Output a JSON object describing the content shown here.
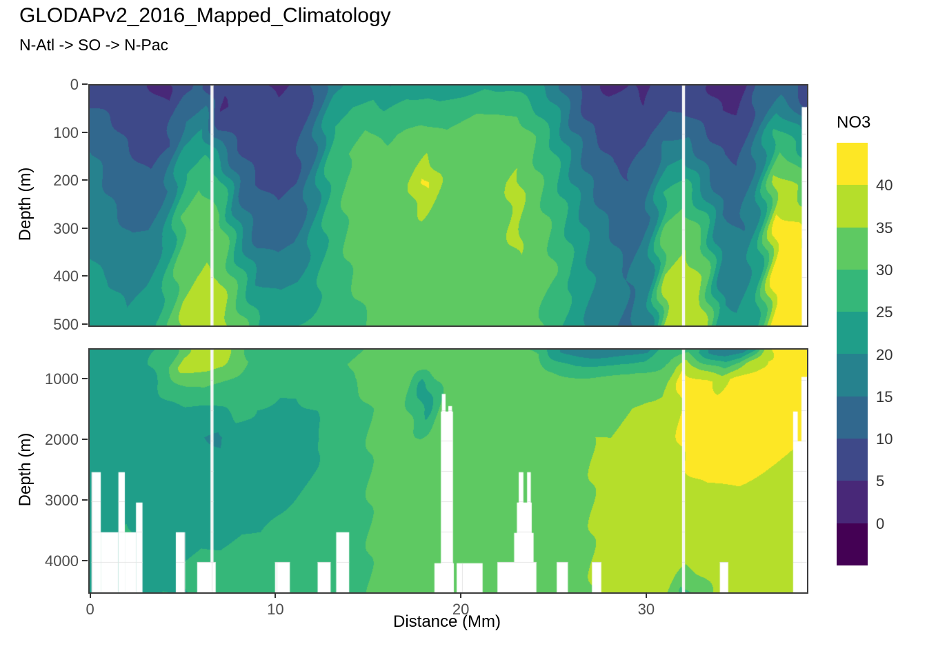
{
  "header": {
    "title": "GLODAPv2_2016_Mapped_Climatology",
    "subtitle": "N-Atl -> SO -> N-Pac"
  },
  "axes": {
    "x": {
      "label": "Distance (Mm)",
      "ticks": [
        0,
        10,
        20,
        30
      ],
      "range": [
        0,
        38.6
      ]
    },
    "y": {
      "label": "Depth (m)"
    },
    "y_top": {
      "ticks": [
        0,
        100,
        200,
        300,
        400,
        500
      ],
      "range": [
        0,
        500
      ]
    },
    "y_bottom": {
      "ticks": [
        1000,
        2000,
        3000,
        4000
      ],
      "range": [
        500,
        4500
      ]
    }
  },
  "legend": {
    "title": "NO3",
    "tick_labels": [
      "40",
      "35",
      "30",
      "25",
      "20",
      "15",
      "10",
      "5",
      "0"
    ],
    "band_colors_top_to_bottom": [
      "#fde725",
      "#b5de2b",
      "#5ec962",
      "#35b779",
      "#1f9e89",
      "#26828e",
      "#31688e",
      "#3e4989",
      "#482878",
      "#440154"
    ]
  },
  "chart_data": {
    "type": "heatmap",
    "variable": "NO3",
    "title": "GLODAPv2_2016_Mapped_Climatology",
    "subtitle": "N-Atl -> SO -> N-Pac",
    "xlabel": "Distance (Mm)",
    "ylabel": "Depth (m)",
    "x_range": [
      0,
      38.6
    ],
    "color_scale": {
      "breaks": [
        0,
        5,
        10,
        15,
        20,
        25,
        30,
        35,
        40
      ],
      "colors_low_to_high": [
        "#440154",
        "#482878",
        "#3e4989",
        "#31688e",
        "#26828e",
        "#1f9e89",
        "#35b779",
        "#5ec962",
        "#b5de2b",
        "#fde725"
      ]
    },
    "x": [
      0,
      1,
      2,
      3,
      4,
      5,
      6,
      7,
      8,
      9,
      10,
      11,
      12,
      13,
      14,
      15,
      16,
      17,
      18,
      19,
      20,
      21,
      22,
      23,
      24,
      25,
      26,
      27,
      28,
      29,
      30,
      31,
      32,
      33,
      34,
      35,
      36,
      37,
      38,
      38.6
    ],
    "upper_panel": {
      "depth_range": [
        0,
        500
      ],
      "depths": [
        0,
        50,
        100,
        200,
        300,
        400,
        500
      ],
      "values_by_column": [
        [
          8,
          10,
          14,
          17,
          19,
          21,
          22
        ],
        [
          7,
          9,
          11,
          14,
          17,
          20,
          22
        ],
        [
          6,
          7,
          9,
          12,
          15,
          18,
          21
        ],
        [
          5,
          6,
          8,
          11,
          15,
          19,
          23
        ],
        [
          4,
          6,
          9,
          14,
          19,
          24,
          28
        ],
        [
          9,
          13,
          18,
          26,
          31,
          34,
          36
        ],
        [
          11,
          16,
          21,
          29,
          33,
          36,
          38
        ],
        [
          6,
          4,
          10,
          25,
          32,
          35,
          38
        ],
        [
          6,
          6,
          8,
          13,
          20,
          27,
          32
        ],
        [
          6,
          6,
          7,
          10,
          13,
          19,
          25
        ],
        [
          4,
          6,
          7,
          9,
          12,
          18,
          24
        ],
        [
          6,
          7,
          8,
          10,
          13,
          19,
          25
        ],
        [
          10,
          12,
          14,
          17,
          20,
          23,
          26
        ],
        [
          19,
          22,
          26,
          28,
          28,
          28,
          28
        ],
        [
          21,
          25,
          29,
          31,
          31,
          30,
          29
        ],
        [
          22,
          26,
          30,
          32,
          32,
          31,
          30
        ],
        [
          19,
          24,
          29,
          33,
          33,
          32,
          31
        ],
        [
          22,
          27,
          31,
          33,
          34,
          32,
          31
        ],
        [
          23,
          28,
          32,
          41,
          34,
          33,
          31
        ],
        [
          23,
          27,
          31,
          33,
          33,
          32,
          31
        ],
        [
          23,
          28,
          32,
          34,
          34,
          33,
          32
        ],
        [
          24,
          29,
          33,
          34,
          34,
          33,
          32
        ],
        [
          23,
          28,
          33,
          34,
          34,
          33,
          32
        ],
        [
          23,
          28,
          33,
          36,
          36,
          34,
          32
        ],
        [
          21,
          25,
          29,
          31,
          32,
          32,
          31
        ],
        [
          18,
          21,
          24,
          27,
          29,
          30,
          27
        ],
        [
          11,
          13,
          16,
          20,
          23,
          25,
          22
        ],
        [
          6,
          8,
          10,
          14,
          18,
          20,
          19
        ],
        [
          4,
          6,
          8,
          11,
          15,
          17,
          16
        ],
        [
          5,
          6,
          8,
          10,
          13,
          15,
          14
        ],
        [
          4,
          5,
          9,
          13,
          16,
          17,
          17
        ],
        [
          8,
          10,
          14,
          24,
          31,
          35,
          37
        ],
        [
          7,
          10,
          15,
          26,
          33,
          37,
          38
        ],
        [
          6,
          8,
          11,
          17,
          28,
          34,
          36
        ],
        [
          3,
          5,
          8,
          12,
          16,
          19,
          21
        ],
        [
          3,
          4,
          7,
          11,
          15,
          18,
          21
        ],
        [
          10,
          12,
          15,
          19,
          22,
          24,
          26
        ],
        [
          12,
          18,
          26,
          37,
          42,
          44,
          44
        ],
        [
          10,
          15,
          24,
          35,
          41,
          44,
          44
        ],
        [
          7,
          9,
          18,
          30,
          38,
          42,
          43
        ]
      ],
      "no_data_rects": [
        [
          6.42,
          6.58,
          0,
          500
        ],
        [
          31.86,
          32.02,
          0,
          500
        ],
        [
          38.32,
          38.6,
          45,
          500
        ]
      ]
    },
    "lower_panel": {
      "depth_range": [
        500,
        4500
      ],
      "depths": [
        500,
        750,
        1000,
        1500,
        2000,
        2500,
        3000,
        3500,
        4000,
        4500
      ],
      "values_by_column": [
        [
          21,
          22,
          22,
          22,
          22,
          22,
          22,
          22,
          22,
          22
        ],
        [
          22,
          22,
          22,
          22,
          22,
          22,
          22,
          22,
          22,
          22
        ],
        [
          22,
          22,
          22,
          22,
          22,
          22,
          23,
          26,
          24,
          24
        ],
        [
          23,
          24,
          23,
          22,
          22,
          22,
          22,
          23,
          24,
          24
        ],
        [
          26,
          30,
          27,
          23,
          22,
          22,
          22,
          23,
          24,
          25
        ],
        [
          34,
          37,
          31,
          24,
          22,
          22,
          22,
          23,
          25,
          25
        ],
        [
          37,
          37,
          32,
          24,
          20,
          22,
          23,
          24,
          26,
          26
        ],
        [
          37,
          36,
          31,
          25,
          19,
          22,
          23,
          24,
          26,
          26
        ],
        [
          31,
          32,
          30,
          27,
          23,
          23,
          24,
          25,
          27,
          27
        ],
        [
          26,
          29,
          28,
          25,
          23,
          23,
          24,
          25,
          27,
          27
        ],
        [
          25,
          27,
          26,
          24,
          23,
          23,
          24,
          26,
          27,
          27
        ],
        [
          26,
          27,
          26,
          24,
          23,
          24,
          25,
          26,
          27,
          28
        ],
        [
          27,
          28,
          27,
          25,
          24,
          25,
          26,
          27,
          28,
          28
        ],
        [
          28,
          29,
          29,
          27,
          26,
          27,
          28,
          28,
          29,
          29
        ],
        [
          29,
          30,
          30,
          29,
          28,
          29,
          29,
          29,
          29,
          29
        ],
        [
          30,
          31,
          31,
          30,
          30,
          30,
          30,
          30,
          30,
          30
        ],
        [
          31,
          31,
          31,
          31,
          31,
          31,
          31,
          31,
          31,
          31
        ],
        [
          31,
          31,
          31,
          31,
          31,
          31,
          31,
          31,
          31,
          31
        ],
        [
          31,
          31,
          23,
          23,
          31,
          31,
          31,
          31,
          31,
          31
        ],
        [
          31,
          32,
          32,
          32,
          32,
          32,
          32,
          32,
          32,
          32
        ],
        [
          32,
          32,
          32,
          32,
          32,
          32,
          32,
          32,
          32,
          32
        ],
        [
          32,
          33,
          33,
          33,
          33,
          32,
          32,
          32,
          32,
          32
        ],
        [
          31,
          33,
          33,
          33,
          33,
          33,
          32,
          32,
          32,
          32
        ],
        [
          30,
          33,
          33,
          34,
          34,
          33,
          33,
          33,
          32,
          32
        ],
        [
          29,
          32,
          33,
          34,
          34,
          34,
          33,
          33,
          33,
          33
        ],
        [
          22,
          28,
          32,
          34,
          34,
          34,
          34,
          33,
          33,
          33
        ],
        [
          18,
          26,
          32,
          34,
          34,
          34,
          34,
          34,
          34,
          34
        ],
        [
          16,
          25,
          31,
          34,
          35,
          35,
          35,
          35,
          35,
          35
        ],
        [
          15,
          24,
          31,
          34,
          35,
          36,
          36,
          36,
          36,
          36
        ],
        [
          15,
          24,
          31,
          35,
          36,
          36,
          36,
          37,
          37,
          37
        ],
        [
          16,
          25,
          32,
          36,
          36,
          37,
          37,
          37,
          37,
          37
        ],
        [
          26,
          31,
          34,
          36,
          37,
          37,
          37,
          37,
          37,
          37
        ],
        [
          30,
          40,
          42,
          42,
          41,
          40,
          38,
          37,
          36,
          29
        ],
        [
          24,
          34,
          41,
          42,
          42,
          41,
          39,
          38,
          37,
          33
        ],
        [
          16,
          28,
          38,
          42,
          42,
          41,
          39,
          38,
          37,
          36
        ],
        [
          16,
          31,
          41,
          42,
          42,
          41,
          39,
          38,
          38,
          37
        ],
        [
          22,
          38,
          42,
          42,
          42,
          40,
          38,
          38,
          37,
          37
        ],
        [
          44,
          43,
          42,
          42,
          41,
          39,
          38,
          38,
          37,
          37
        ],
        [
          43,
          42,
          42,
          42,
          40,
          38,
          38,
          37,
          37,
          37
        ],
        [
          42,
          42,
          42,
          41,
          40,
          38,
          38,
          37,
          37,
          37
        ]
      ],
      "no_data_rects": [
        [
          0,
          0.5,
          2520,
          4500
        ],
        [
          0.5,
          1.45,
          3510,
          4500
        ],
        [
          1.45,
          1.8,
          2520,
          4500
        ],
        [
          1.8,
          2.4,
          3510,
          4500
        ],
        [
          2.4,
          2.75,
          3020,
          4500
        ],
        [
          4.55,
          5.05,
          3510,
          4500
        ],
        [
          5.7,
          6.7,
          4000,
          4500
        ],
        [
          9.9,
          10.7,
          4000,
          4500
        ],
        [
          12.2,
          12.9,
          4000,
          4500
        ],
        [
          13.2,
          13.9,
          3510,
          4500
        ],
        [
          18.9,
          19.1,
          1230,
          4500
        ],
        [
          19.25,
          19.45,
          1430,
          4500
        ],
        [
          18.85,
          19.5,
          1520,
          4500
        ],
        [
          18.5,
          19.55,
          4020,
          4500
        ],
        [
          19.7,
          21.1,
          4020,
          4500
        ],
        [
          23.05,
          23.3,
          2520,
          4500
        ],
        [
          23.5,
          23.7,
          2520,
          4500
        ],
        [
          22.95,
          23.75,
          3020,
          4500
        ],
        [
          22.8,
          23.85,
          3520,
          4500
        ],
        [
          21.9,
          24.0,
          4000,
          4500
        ],
        [
          25.1,
          25.7,
          4000,
          4500
        ],
        [
          27.0,
          27.5,
          4000,
          4500
        ],
        [
          33.9,
          34.35,
          4000,
          4500
        ],
        [
          38.3,
          38.6,
          950,
          4500
        ],
        [
          37.85,
          38.3,
          2010,
          4500
        ],
        [
          37.85,
          38.1,
          1520,
          2010
        ],
        [
          6.42,
          6.58,
          500,
          4500
        ],
        [
          31.86,
          32.02,
          500,
          4500
        ]
      ]
    }
  }
}
